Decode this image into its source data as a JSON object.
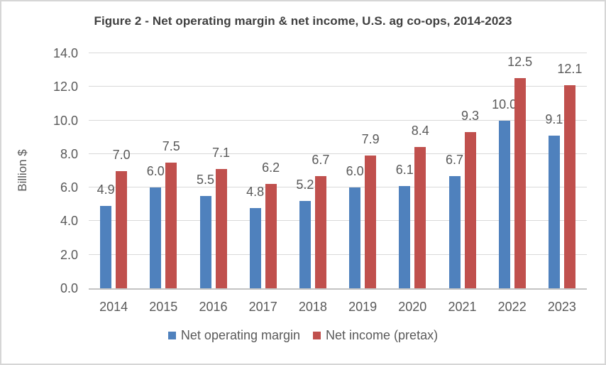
{
  "chart_data": {
    "type": "bar",
    "title": "Figure 2 - Net operating margin & net income, U.S. ag co-ops, 2014-2023",
    "xlabel": "",
    "ylabel": "Billion $",
    "categories": [
      "2014",
      "2015",
      "2016",
      "2017",
      "2018",
      "2019",
      "2020",
      "2021",
      "2022",
      "2023"
    ],
    "series": [
      {
        "name": "Net operating margin",
        "color": "#4F81BD",
        "values": [
          4.9,
          6.0,
          5.5,
          4.8,
          5.2,
          6.0,
          6.1,
          6.7,
          10.0,
          9.1
        ]
      },
      {
        "name": "Net income (pretax)",
        "color": "#C0504D",
        "values": [
          7.0,
          7.5,
          7.1,
          6.2,
          6.7,
          7.9,
          8.4,
          9.3,
          12.5,
          12.1
        ]
      }
    ],
    "ylim": [
      0,
      14
    ],
    "ytick_labels": [
      "0.0",
      "2.0",
      "4.0",
      "6.0",
      "8.0",
      "10.0",
      "12.0",
      "14.0"
    ],
    "ytick_step": 2,
    "grid": true,
    "data_labels": true,
    "legend_position": "bottom",
    "colors": {
      "gridline": "#D9D9D9",
      "axis_line": "#C3C3C3",
      "label_text": "#595959",
      "title_text": "#404040",
      "background": "#FFFFFF",
      "border": "#D6D6D6"
    }
  }
}
